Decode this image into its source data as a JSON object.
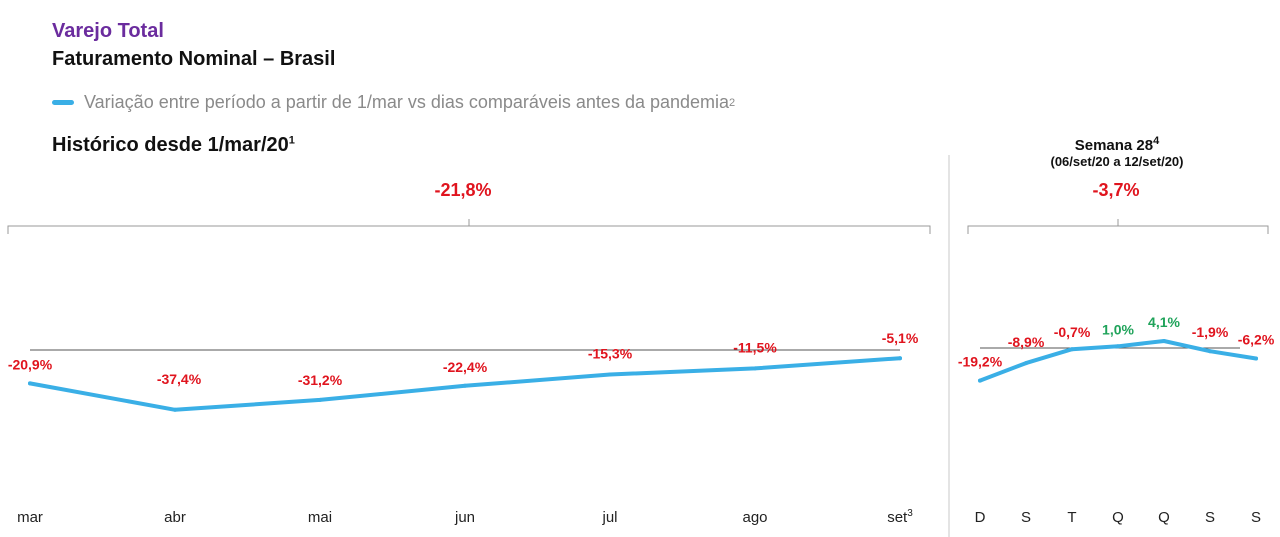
{
  "header": {
    "title": "Varejo Total",
    "subtitle": "Faturamento Nominal – Brasil",
    "legend_label": "Variação entre período a partir de 1/mar vs dias comparáveis antes da pandemia",
    "legend_sup": "2"
  },
  "colors": {
    "line": "#3aafe6",
    "negative": "#e0141e",
    "positive": "#1fa35a",
    "title": "#6b2c9e"
  },
  "chart_data": [
    {
      "type": "line",
      "title": "Histórico desde 1/mar/20",
      "title_sup": "1",
      "total_label": "-21,8%",
      "categories": [
        "mar",
        "abr",
        "mai",
        "jun",
        "jul",
        "ago",
        "set"
      ],
      "category_sups": [
        "",
        "",
        "",
        "",
        "",
        "",
        "3"
      ],
      "values": [
        -20.9,
        -37.4,
        -31.2,
        -22.4,
        -15.3,
        -11.5,
        -5.1
      ],
      "data_labels": [
        "-20,9%",
        "-37,4%",
        "-31,2%",
        "-22,4%",
        "-15,3%",
        "-11,5%",
        "-5,1%"
      ],
      "baseline": 0
    },
    {
      "type": "line",
      "title": "Semana 28",
      "title_sup": "4",
      "subtitle": "(06/set/20 a 12/set/20)",
      "total_label": "-3,7%",
      "categories": [
        "D",
        "S",
        "T",
        "Q",
        "Q",
        "S",
        "S"
      ],
      "values": [
        -19.2,
        -8.9,
        -0.7,
        1.0,
        4.1,
        -1.9,
        -6.2
      ],
      "data_labels": [
        "-19,2%",
        "-8,9%",
        "-0,7%",
        "1,0%",
        "4,1%",
        "-1,9%",
        "-6,2%"
      ],
      "baseline": 0
    }
  ]
}
